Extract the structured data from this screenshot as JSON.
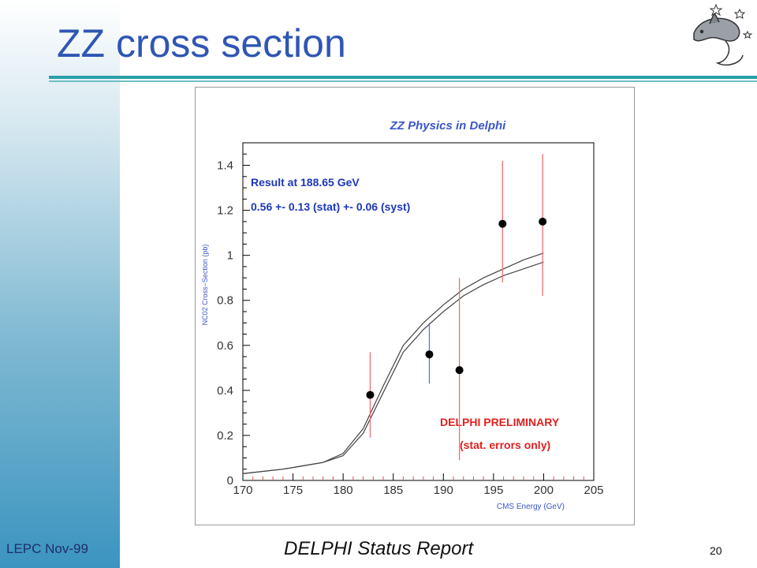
{
  "slide": {
    "title": "ZZ cross section",
    "footer_left": "LEPC Nov-99",
    "footer_center": "DELPHI Status Report",
    "page_number": "20"
  },
  "colors": {
    "title": "#2f56b4",
    "chart_title": "#3b56c8",
    "annotation_blue": "#1d37b8",
    "preliminary_red": "#e02020",
    "error_red": "#f07070",
    "error_blue": "#6070e0",
    "rule": "#2aa0a8"
  },
  "chart_data": {
    "type": "scatter",
    "title": "ZZ Physics in Delphi",
    "xlabel": "CMS Energy (GeV)",
    "ylabel": "NC02 Cross−Section (pb)",
    "xlim": [
      170,
      205
    ],
    "ylim": [
      0,
      1.5
    ],
    "x_ticks": [
      "170",
      "175",
      "180",
      "185",
      "190",
      "195",
      "200",
      "205"
    ],
    "y_ticks": [
      "0",
      "0.2",
      "0.4",
      "0.6",
      "0.8",
      "1",
      "1.2",
      "1.4"
    ],
    "annotations": {
      "result_line1": "Result at 188.65 GeV",
      "result_line2": "0.56 +- 0.13 (stat) +- 0.06 (syst)",
      "preliminary": "DELPHI PRELIMINARY",
      "errors_note": "(stat. errors only)"
    },
    "series": [
      {
        "points": [
          {
            "x": 182.7,
            "y": 0.38,
            "err_low": 0.19,
            "err_high": 0.57,
            "highlight": false
          },
          {
            "x": 188.6,
            "y": 0.56,
            "err_low": 0.43,
            "err_high": 0.7,
            "highlight": true
          },
          {
            "x": 191.6,
            "y": 0.49,
            "err_low": 0.09,
            "err_high": 0.9,
            "highlight": false
          },
          {
            "x": 195.9,
            "y": 1.14,
            "err_low": 0.88,
            "err_high": 1.42,
            "highlight": false
          },
          {
            "x": 199.9,
            "y": 1.15,
            "err_low": 0.82,
            "err_high": 1.45,
            "highlight": false
          }
        ]
      }
    ],
    "theory_curves": [
      {
        "x": [
          170,
          174,
          178,
          180,
          182,
          184,
          186,
          188,
          190,
          192,
          194,
          196,
          198,
          200
        ],
        "y": [
          0.03,
          0.05,
          0.08,
          0.12,
          0.23,
          0.42,
          0.6,
          0.7,
          0.78,
          0.85,
          0.9,
          0.94,
          0.98,
          1.01
        ]
      },
      {
        "x": [
          170,
          174,
          178,
          180,
          182,
          184,
          186,
          188,
          190,
          192,
          194,
          196,
          198,
          200
        ],
        "y": [
          0.03,
          0.05,
          0.08,
          0.11,
          0.21,
          0.39,
          0.57,
          0.67,
          0.75,
          0.82,
          0.87,
          0.91,
          0.94,
          0.97
        ]
      }
    ],
    "grid": false,
    "legend": "none"
  }
}
